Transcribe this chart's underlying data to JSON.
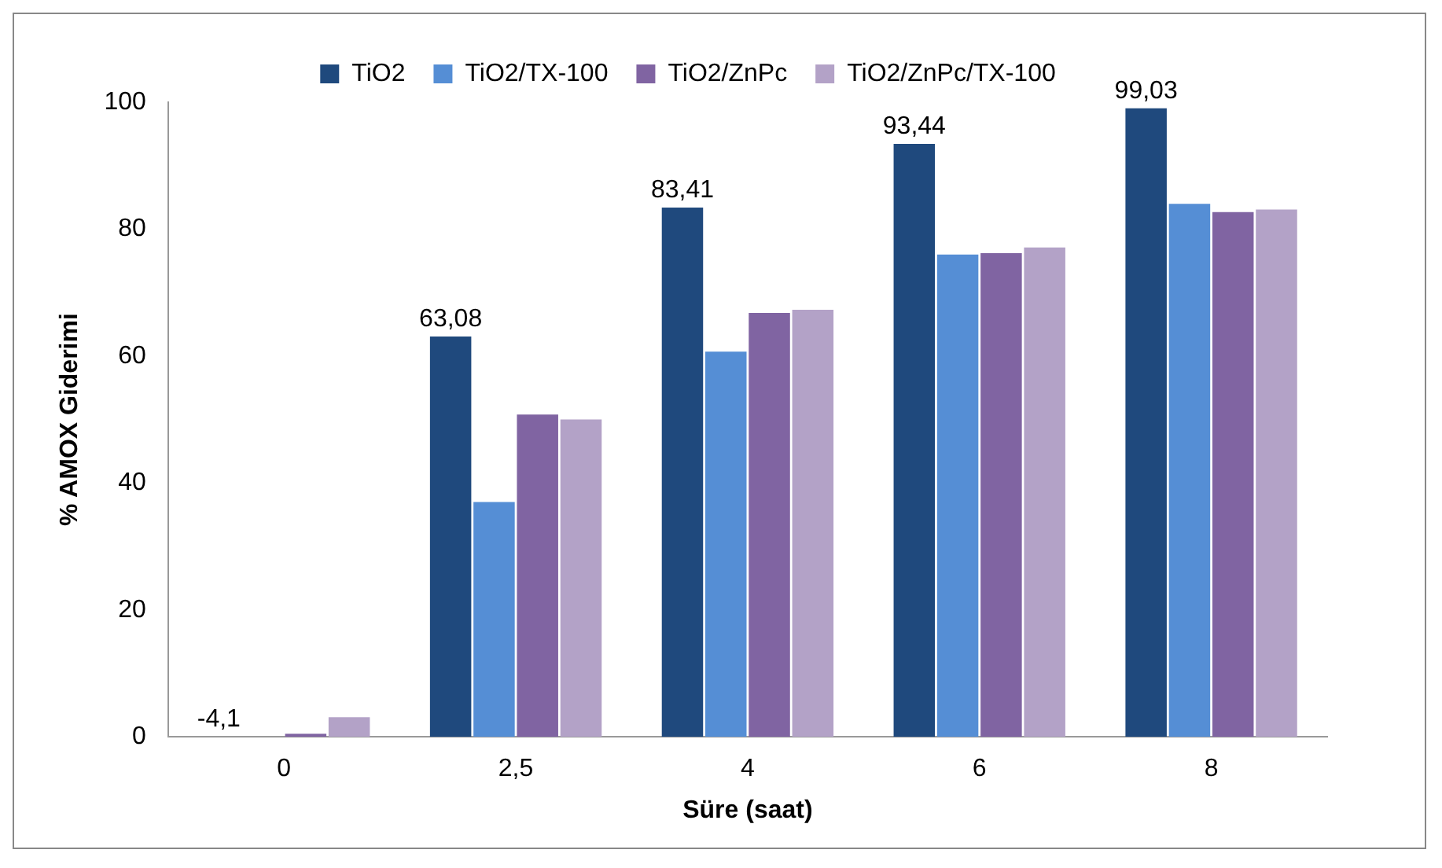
{
  "chart_data": {
    "type": "bar",
    "xlabel": "Süre (saat)",
    "ylabel": "% AMOX Giderimi",
    "categories": [
      "0",
      "2,5",
      "4",
      "6",
      "8"
    ],
    "series": [
      {
        "name": "TiO2",
        "color": "#1f497d",
        "values": [
          null,
          63.08,
          83.41,
          93.44,
          99.03
        ],
        "value_labels": [
          "-4,1",
          "63,08",
          "83,41",
          "93,44",
          "99,03"
        ]
      },
      {
        "name": "TiO2/TX-100",
        "color": "#558ed5",
        "values": [
          0,
          37,
          60.7,
          76,
          84
        ]
      },
      {
        "name": "TiO2/ZnPc",
        "color": "#8064a2",
        "values": [
          0.5,
          50.8,
          66.8,
          76.2,
          82.7
        ]
      },
      {
        "name": "TiO2/ZnPc/TX-100",
        "color": "#b3a2c7",
        "values": [
          3.1,
          50,
          67.3,
          77.1,
          83.1
        ]
      }
    ],
    "ylim": [
      0,
      100
    ],
    "yticks": [
      0,
      20,
      40,
      60,
      80,
      100
    ],
    "grid": false,
    "legend": "top"
  }
}
